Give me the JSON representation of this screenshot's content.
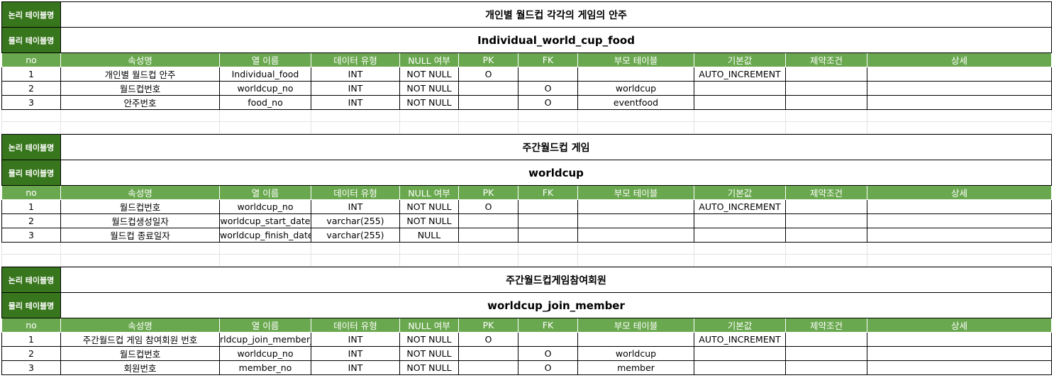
{
  "labels": {
    "logical": "논리 테이블명",
    "physical": "물리 테이블명"
  },
  "columns": [
    "no",
    "속성명",
    "열 이름",
    "데이터 유형",
    "NULL 여부",
    "PK",
    "FK",
    "부모 테이블",
    "기본값",
    "제약조건",
    "상세"
  ],
  "tables": [
    {
      "logical_name": "개인별 월드컵 각각의 게임의 안주",
      "physical_name": "Individual_world_cup_food",
      "rows": [
        [
          "1",
          "개인별 월드컵 안주",
          "Individual_food",
          "INT",
          "NOT NULL",
          "O",
          "",
          "",
          "AUTO_INCREMENT",
          "",
          ""
        ],
        [
          "2",
          "월드컵번호",
          "worldcup_no",
          "INT",
          "NOT NULL",
          "",
          "O",
          "worldcup",
          "",
          "",
          ""
        ],
        [
          "3",
          "안주번호",
          "food_no",
          "INT",
          "NOT NULL",
          "",
          "O",
          "eventfood",
          "",
          "",
          ""
        ]
      ]
    },
    {
      "logical_name": "주간월드컵 게임",
      "physical_name": "worldcup",
      "rows": [
        [
          "1",
          "월드컵번호",
          "worldcup_no",
          "INT",
          "NOT NULL",
          "O",
          "",
          "",
          "AUTO_INCREMENT",
          "",
          ""
        ],
        [
          "2",
          "월드컵생성일자",
          "worldcup_start_date",
          "varchar(255)",
          "NOT NULL",
          "",
          "",
          "",
          "",
          "",
          ""
        ],
        [
          "3",
          "월드컵 종료일자",
          "worldcup_finish_date",
          "varchar(255)",
          "NULL",
          "",
          "",
          "",
          "",
          "",
          ""
        ]
      ]
    },
    {
      "logical_name": "주간월드컵게임참여회원",
      "physical_name": "worldcup_join_member",
      "rows": [
        [
          "1",
          "주간월드컵 게임 참여회원 번호",
          "rldcup_join_member_",
          "INT",
          "NOT NULL",
          "O",
          "",
          "",
          "AUTO_INCREMENT",
          "",
          ""
        ],
        [
          "2",
          "월드컵번호",
          "worldcup_no",
          "INT",
          "NOT NULL",
          "",
          "O",
          "worldcup",
          "",
          "",
          ""
        ],
        [
          "3",
          "회원번호",
          "member_no",
          "INT",
          "NOT NULL",
          "",
          "O",
          "member",
          "",
          "",
          ""
        ]
      ]
    }
  ]
}
